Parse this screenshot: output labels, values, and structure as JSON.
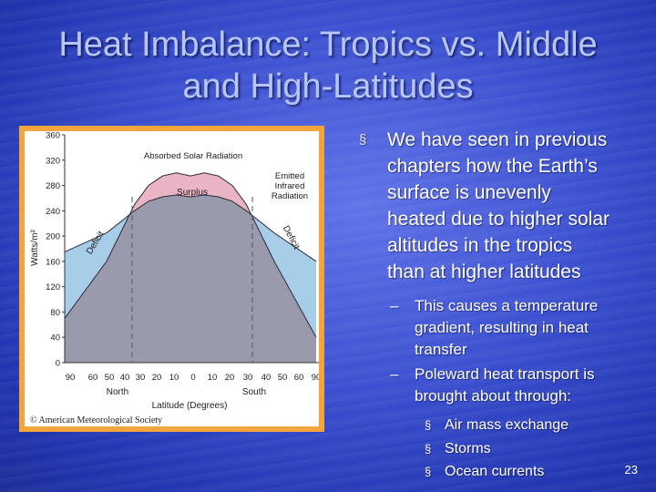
{
  "slide": {
    "title_line1": "Heat Imbalance:  Tropics vs. Middle",
    "title_line2": "and High-Latitudes",
    "page_number": "23"
  },
  "figure": {
    "copyright": "© American Meteorological Society",
    "annotations": {
      "absorbed": "Absorbed Solar Radiation",
      "surplus": "Surplus",
      "emitted_1": "Emitted",
      "emitted_2": "Infrared",
      "emitted_3": "Radiation",
      "deficit_left": "Deficit",
      "deficit_right": "Deficit"
    },
    "colors": {
      "frame": "#f2a53c",
      "surplus": "#e9b4c3",
      "deficit": "#a8cde8",
      "emitted": "#9a9aad"
    }
  },
  "chart_data": {
    "type": "area",
    "ylabel": "Watts/m²",
    "xlabel": "Latitude (Degrees)",
    "x_group_labels": [
      "North",
      "South"
    ],
    "ylim": [
      0,
      350
    ],
    "y_ticks": [
      "0",
      "40",
      "80",
      "120",
      "160",
      "200",
      "240",
      "280",
      "320",
      "360"
    ],
    "x_ticks": [
      "90",
      "60",
      "50",
      "40",
      "30",
      "20",
      "10",
      "0",
      "10",
      "20",
      "30",
      "40",
      "50",
      "60",
      "90"
    ],
    "series": [
      {
        "name": "Absorbed Solar Radiation",
        "x": [
          -90,
          -60,
          -40,
          -30,
          -20,
          -10,
          0,
          10,
          20,
          30,
          40,
          60,
          90
        ],
        "values": [
          70,
          160,
          250,
          280,
          295,
          300,
          295,
          300,
          295,
          280,
          250,
          160,
          40
        ]
      },
      {
        "name": "Emitted Infrared Radiation",
        "x": [
          -90,
          -60,
          -40,
          -30,
          -20,
          -10,
          0,
          10,
          20,
          30,
          40,
          60,
          90
        ],
        "values": [
          175,
          205,
          240,
          255,
          262,
          265,
          262,
          265,
          262,
          255,
          240,
          205,
          160
        ]
      }
    ]
  },
  "bullets": {
    "main_lines": [
      "We have seen in previous",
      "chapters how the Earth’s",
      "surface is unevenly",
      "heated due to higher solar",
      "altitudes in the tropics",
      "than at higher latitudes"
    ],
    "sub1_lines": [
      "This causes a temperature",
      "gradient, resulting in heat",
      "transfer"
    ],
    "sub2_lines": [
      "Poleward heat transport is",
      "brought about through:"
    ],
    "level3": [
      "Air mass exchange",
      "Storms",
      "Ocean currents"
    ],
    "marker": "§",
    "dash": "–"
  }
}
